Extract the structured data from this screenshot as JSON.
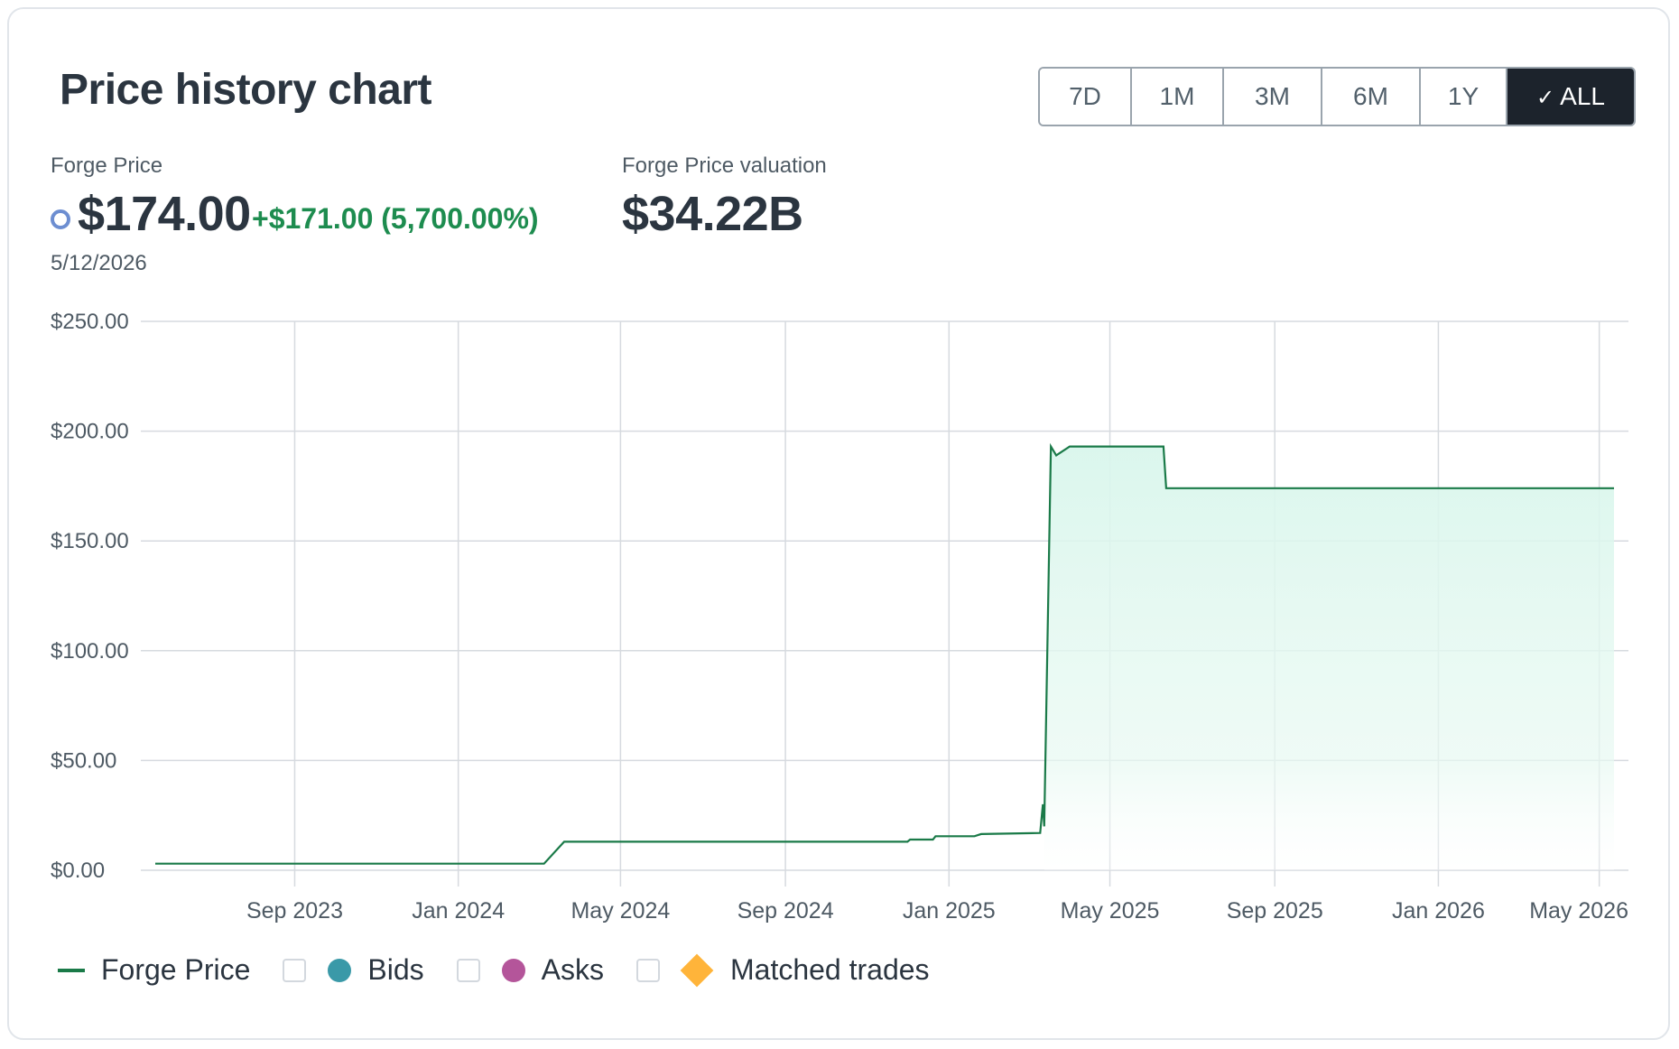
{
  "title": "Price history chart",
  "ranges": [
    {
      "label": "7D",
      "active": false
    },
    {
      "label": "1M",
      "active": false
    },
    {
      "label": "3M",
      "active": false
    },
    {
      "label": "6M",
      "active": false
    },
    {
      "label": "1Y",
      "active": false
    },
    {
      "label": "ALL",
      "active": true
    }
  ],
  "price": {
    "label": "Forge Price",
    "value": "$174.00",
    "change": "+$171.00 (5,700.00%)",
    "date": "5/12/2026"
  },
  "valuation": {
    "label": "Forge Price valuation",
    "value": "$34.22B"
  },
  "legend": {
    "forge_price": "Forge Price",
    "bids": "Bids",
    "asks": "Asks",
    "matched_trades": "Matched trades"
  },
  "colors": {
    "line": "#1a7a48",
    "fill": "#d9f6ec",
    "bids": "#3a99a8",
    "asks": "#b4559a",
    "matched": "#ffb43a",
    "active_button": "#1c232c"
  },
  "chart_data": {
    "type": "area",
    "series": [
      {
        "name": "Forge Price",
        "points": [
          [
            "2023-05-20",
            3.0
          ],
          [
            "2024-03-05",
            3.0
          ],
          [
            "2024-03-20",
            13.0
          ],
          [
            "2024-12-01",
            13.0
          ],
          [
            "2024-12-03",
            14.0
          ],
          [
            "2024-12-20",
            14.0
          ],
          [
            "2024-12-22",
            15.5
          ],
          [
            "2025-01-20",
            15.5
          ],
          [
            "2025-01-25",
            16.5
          ],
          [
            "2025-03-10",
            17.0
          ],
          [
            "2025-03-12",
            30.0
          ],
          [
            "2025-03-13",
            20.0
          ],
          [
            "2025-03-18",
            193.0
          ],
          [
            "2025-03-22",
            189.0
          ],
          [
            "2025-04-01",
            193.0
          ],
          [
            "2025-06-10",
            193.0
          ],
          [
            "2025-06-12",
            174.0
          ],
          [
            "2026-05-12",
            174.0
          ]
        ]
      }
    ],
    "x_ticks": [
      "Sep 2023",
      "Jan 2024",
      "May 2024",
      "Sep 2024",
      "Jan 2025",
      "May 2025",
      "Sep 2025",
      "Jan 2026",
      "May 2026"
    ],
    "x_tick_dates": [
      "2023-09-01",
      "2024-01-01",
      "2024-05-01",
      "2024-09-01",
      "2025-01-01",
      "2025-05-01",
      "2025-09-01",
      "2026-01-01",
      "2026-05-01"
    ],
    "xlim": [
      "2023-05-20",
      "2026-05-12"
    ],
    "y_ticks": [
      "$250.00",
      "$200.00",
      "$150.00",
      "$100.00",
      "$50.00",
      "$0.00"
    ],
    "y_tick_values": [
      250,
      200,
      150,
      100,
      50,
      0
    ],
    "ylim": [
      0,
      250
    ],
    "grid": true,
    "legend_position": "bottom-left"
  }
}
